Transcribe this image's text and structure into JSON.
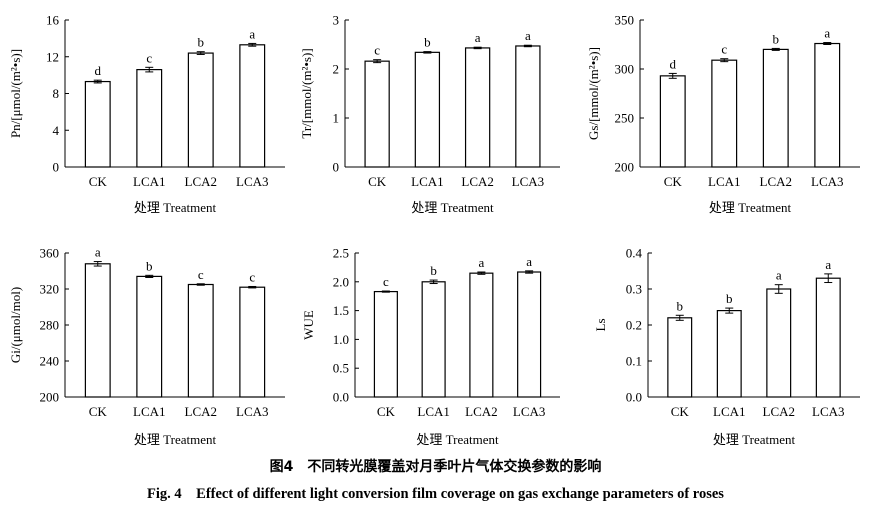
{
  "caption": {
    "cn": "图4　不同转光膜覆盖对月季叶片气体交换参数的影响",
    "en": "Fig. 4　Effect of different light conversion film coverage on gas exchange parameters of roses"
  },
  "chart_data": [
    {
      "type": "bar",
      "categories": [
        "CK",
        "LCA1",
        "LCA2",
        "LCA3"
      ],
      "values": [
        9.3,
        10.6,
        12.4,
        13.3
      ],
      "errors": [
        0.15,
        0.25,
        0.15,
        0.15
      ],
      "letters": [
        "d",
        "c",
        "b",
        "a"
      ],
      "ylabel": "Pn/[μmol/(m²•s)]",
      "xlabel": "处理 Treatment",
      "ylim": [
        0,
        16
      ],
      "yticks": [
        0,
        4,
        8,
        12,
        16
      ]
    },
    {
      "type": "bar",
      "categories": [
        "CK",
        "LCA1",
        "LCA2",
        "LCA3"
      ],
      "values": [
        2.16,
        2.34,
        2.43,
        2.47
      ],
      "errors": [
        0.03,
        0.015,
        0.015,
        0.015
      ],
      "letters": [
        "c",
        "b",
        "a",
        "a"
      ],
      "ylabel": "Tr/[mmol/(m²•s)]",
      "xlabel": "处理 Treatment",
      "ylim": [
        0,
        3
      ],
      "yticks": [
        0,
        1,
        2,
        3
      ]
    },
    {
      "type": "bar",
      "categories": [
        "CK",
        "LCA1",
        "LCA2",
        "LCA3"
      ],
      "values": [
        293,
        309,
        320,
        326
      ],
      "errors": [
        2.5,
        1.5,
        1,
        1
      ],
      "letters": [
        "d",
        "c",
        "b",
        "a"
      ],
      "ylabel": "Gs/[mmol/(m²•s)]",
      "xlabel": "处理 Treatment",
      "ylim": [
        200,
        350
      ],
      "yticks": [
        200,
        250,
        300,
        350
      ]
    },
    {
      "type": "bar",
      "categories": [
        "CK",
        "LCA1",
        "LCA2",
        "LCA3"
      ],
      "values": [
        348,
        334,
        325,
        322
      ],
      "errors": [
        2.5,
        1.2,
        0.8,
        0.8
      ],
      "letters": [
        "a",
        "b",
        "c",
        "c"
      ],
      "ylabel": "Gi/(μmol/mol)",
      "xlabel": "处理 Treatment",
      "ylim": [
        200,
        360
      ],
      "yticks": [
        200,
        240,
        280,
        320,
        360
      ]
    },
    {
      "type": "bar",
      "categories": [
        "CK",
        "LCA1",
        "LCA2",
        "LCA3"
      ],
      "values": [
        1.83,
        2.0,
        2.15,
        2.17
      ],
      "errors": [
        0.01,
        0.03,
        0.02,
        0.02
      ],
      "letters": [
        "c",
        "b",
        "a",
        "a"
      ],
      "ylabel": "WUE",
      "xlabel": "处理 Treatment",
      "ylim": [
        0,
        2.5
      ],
      "yticks": [
        0,
        0.5,
        1.0,
        1.5,
        2.0,
        2.5
      ]
    },
    {
      "type": "bar",
      "categories": [
        "CK",
        "LCA1",
        "LCA2",
        "LCA3"
      ],
      "values": [
        0.22,
        0.24,
        0.3,
        0.33
      ],
      "errors": [
        0.007,
        0.007,
        0.012,
        0.012
      ],
      "letters": [
        "b",
        "b",
        "a",
        "a"
      ],
      "ylabel": "Ls",
      "xlabel": "处理 Treatment",
      "ylim": [
        0,
        0.4
      ],
      "yticks": [
        0,
        0.1,
        0.2,
        0.3,
        0.4
      ]
    }
  ]
}
